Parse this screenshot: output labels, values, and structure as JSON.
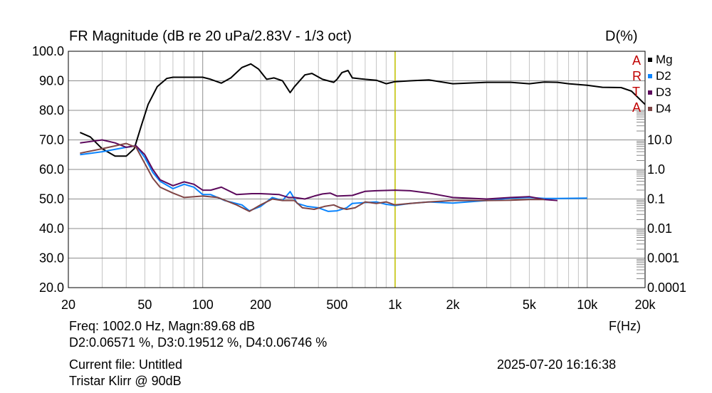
{
  "chart_data": {
    "type": "line",
    "title": "FR Magnitude (dB re 20 uPa/2.83V - 1/3 oct)",
    "right_axis_title": "D(%)",
    "xlabel": "F(Hz)",
    "x_scale": "log",
    "xlim": [
      20,
      20000
    ],
    "ylim": [
      20,
      100
    ],
    "grid": true,
    "legend_placement": "right",
    "x_ticks": [
      20,
      50,
      100,
      200,
      500,
      1000,
      2000,
      5000,
      10000,
      20000
    ],
    "x_tick_labels": [
      "20",
      "50",
      "100",
      "200",
      "500",
      "1k",
      "2k",
      "5k",
      "10k",
      "20k"
    ],
    "y_ticks": [
      100,
      90,
      80,
      70,
      60,
      50,
      40,
      30,
      20
    ],
    "y_tick_labels": [
      "100.0",
      "90.0",
      "80.0",
      "70.0",
      "60.0",
      "50.0",
      "40.0",
      "30.0",
      "20.0"
    ],
    "right_ticks_db": [
      70,
      60,
      50,
      40,
      30,
      20
    ],
    "right_tick_labels": [
      "10.0",
      "1.0",
      "0.1",
      "0.01",
      "0.001",
      "0.0001"
    ],
    "cursor_hz": 1002,
    "series": [
      {
        "name": "Mg",
        "color": "#000000",
        "points": [
          [
            23,
            72.5
          ],
          [
            26,
            71
          ],
          [
            30,
            67
          ],
          [
            35,
            64.5
          ],
          [
            40,
            64.5
          ],
          [
            44,
            67
          ],
          [
            48,
            75
          ],
          [
            52,
            82
          ],
          [
            58,
            88
          ],
          [
            65,
            90.8
          ],
          [
            70,
            91.2
          ],
          [
            100,
            91.2
          ],
          [
            110,
            90.5
          ],
          [
            125,
            89.2
          ],
          [
            140,
            91
          ],
          [
            160,
            94.5
          ],
          [
            178,
            95.7
          ],
          [
            195,
            94
          ],
          [
            215,
            90.5
          ],
          [
            235,
            91
          ],
          [
            260,
            90
          ],
          [
            285,
            86
          ],
          [
            300,
            88
          ],
          [
            340,
            92
          ],
          [
            370,
            92.5
          ],
          [
            420,
            90.5
          ],
          [
            480,
            89.5
          ],
          [
            500,
            90.5
          ],
          [
            530,
            92.8
          ],
          [
            570,
            93.5
          ],
          [
            600,
            91
          ],
          [
            700,
            90.5
          ],
          [
            800,
            90.2
          ],
          [
            900,
            89
          ],
          [
            1000,
            89.7
          ],
          [
            1200,
            90
          ],
          [
            1500,
            90.3
          ],
          [
            2000,
            89
          ],
          [
            3000,
            89.5
          ],
          [
            4000,
            89.5
          ],
          [
            5000,
            89
          ],
          [
            6000,
            89.6
          ],
          [
            7000,
            89.5
          ],
          [
            8000,
            89
          ],
          [
            10000,
            88.5
          ],
          [
            12000,
            87.8
          ],
          [
            15000,
            87.7
          ],
          [
            17000,
            86.5
          ],
          [
            20000,
            82
          ]
        ]
      },
      {
        "name": "D2",
        "color": "#0a84ff",
        "points": [
          [
            23,
            65
          ],
          [
            30,
            66
          ],
          [
            40,
            67.5
          ],
          [
            45,
            68
          ],
          [
            50,
            64
          ],
          [
            55,
            59
          ],
          [
            60,
            56
          ],
          [
            70,
            53.5
          ],
          [
            80,
            55
          ],
          [
            90,
            54
          ],
          [
            100,
            51.5
          ],
          [
            110,
            51.5
          ],
          [
            130,
            49.5
          ],
          [
            160,
            48
          ],
          [
            175,
            46
          ],
          [
            200,
            47.5
          ],
          [
            230,
            50.5
          ],
          [
            260,
            49.5
          ],
          [
            285,
            52.5
          ],
          [
            310,
            48.5
          ],
          [
            350,
            47.5
          ],
          [
            400,
            47
          ],
          [
            450,
            45.8
          ],
          [
            500,
            46
          ],
          [
            560,
            47
          ],
          [
            600,
            48.5
          ],
          [
            700,
            48.8
          ],
          [
            800,
            49
          ],
          [
            900,
            48.2
          ],
          [
            1000,
            47.8
          ],
          [
            1200,
            48.5
          ],
          [
            1500,
            49
          ],
          [
            2000,
            48.6
          ],
          [
            3000,
            49.5
          ],
          [
            4000,
            50.3
          ],
          [
            5000,
            50.5
          ],
          [
            6000,
            50.2
          ],
          [
            7000,
            50.2
          ],
          [
            10000,
            50.3
          ]
        ]
      },
      {
        "name": "D3",
        "color": "#5c0a5c",
        "points": [
          [
            23,
            69
          ],
          [
            30,
            70
          ],
          [
            35,
            69
          ],
          [
            40,
            67.5
          ],
          [
            45,
            68
          ],
          [
            50,
            65
          ],
          [
            55,
            60
          ],
          [
            60,
            56.5
          ],
          [
            70,
            54.5
          ],
          [
            80,
            55.8
          ],
          [
            90,
            55
          ],
          [
            100,
            53
          ],
          [
            110,
            53
          ],
          [
            125,
            54
          ],
          [
            150,
            51.5
          ],
          [
            180,
            51.8
          ],
          [
            200,
            51.8
          ],
          [
            250,
            51.5
          ],
          [
            280,
            50.5
          ],
          [
            300,
            50.5
          ],
          [
            340,
            50
          ],
          [
            380,
            51
          ],
          [
            420,
            51.7
          ],
          [
            460,
            52
          ],
          [
            500,
            51
          ],
          [
            600,
            51.2
          ],
          [
            700,
            52.6
          ],
          [
            800,
            52.8
          ],
          [
            1000,
            53
          ],
          [
            1200,
            52.8
          ],
          [
            1500,
            52
          ],
          [
            2000,
            50.5
          ],
          [
            3000,
            50
          ],
          [
            4000,
            50.5
          ],
          [
            5000,
            50.8
          ],
          [
            6000,
            49.8
          ],
          [
            7000,
            49.5
          ]
        ]
      },
      {
        "name": "D4",
        "color": "#7f4545",
        "points": [
          [
            23,
            65.5
          ],
          [
            30,
            67
          ],
          [
            40,
            68.8
          ],
          [
            45,
            67.5
          ],
          [
            50,
            62
          ],
          [
            55,
            57
          ],
          [
            60,
            54
          ],
          [
            70,
            52
          ],
          [
            80,
            50.5
          ],
          [
            100,
            51
          ],
          [
            120,
            50.5
          ],
          [
            150,
            48
          ],
          [
            175,
            45.8
          ],
          [
            200,
            48
          ],
          [
            230,
            50
          ],
          [
            260,
            49.5
          ],
          [
            300,
            49.5
          ],
          [
            330,
            47
          ],
          [
            380,
            46.5
          ],
          [
            430,
            47.5
          ],
          [
            480,
            48
          ],
          [
            520,
            47
          ],
          [
            560,
            46.5
          ],
          [
            620,
            47
          ],
          [
            700,
            49
          ],
          [
            800,
            48.5
          ],
          [
            900,
            49
          ],
          [
            1000,
            48
          ],
          [
            1200,
            48.5
          ],
          [
            1500,
            49
          ],
          [
            2000,
            49.5
          ],
          [
            3000,
            49.5
          ],
          [
            4000,
            49.6
          ],
          [
            5000,
            49.8
          ],
          [
            6000,
            49.8
          ]
        ]
      }
    ]
  },
  "watermark": [
    "A",
    "R",
    "T",
    "A"
  ],
  "info": {
    "cursor_line": "Freq: 1002.0 Hz, Magn:89.68 dB",
    "dist_line": "D2:0.06571 %, D3:0.19512 %, D4:0.06746 %",
    "file_line": "Current file: Untitled",
    "title_line": "Tristar Klirr @ 90dB",
    "datetime": "2025-07-20  16:16:38"
  }
}
